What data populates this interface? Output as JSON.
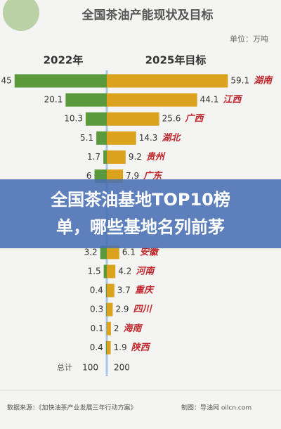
{
  "chart_data": {
    "type": "bar",
    "title": "全国茶油产能现状及目标",
    "unit": "单位：万吨",
    "categories": [
      "湖南",
      "江西",
      "广西",
      "湖北",
      "贵州",
      "广东",
      null,
      null,
      null,
      "安徽",
      "河南",
      "重庆",
      "四川",
      "海南",
      "陕西"
    ],
    "series": [
      {
        "name": "2022年",
        "color": "#5b9a3c",
        "values": [
          45,
          20.1,
          10.3,
          5.1,
          1.7,
          6,
          null,
          null,
          null,
          3.2,
          1.5,
          0.4,
          0.3,
          0.1,
          0.4
        ]
      },
      {
        "name": "2025年目标",
        "color": "#dba21e",
        "values": [
          59.1,
          44.1,
          25.6,
          14.3,
          9.2,
          7.9,
          null,
          null,
          null,
          6.1,
          4.2,
          3.7,
          2.9,
          2,
          1.9
        ]
      }
    ],
    "category_color": "#c0282d",
    "total_label": "总计",
    "totals": [
      100,
      200
    ],
    "xlim": [
      0,
      60
    ]
  },
  "banner": {
    "lines": [
      "全国茶油基地TOP10榜",
      "单，哪些基地名列前茅"
    ]
  },
  "footer": {
    "source": "数据来源：《加快油茶产业发展三年行动方案》",
    "credit": "制图：导油网 oilcn.com"
  }
}
